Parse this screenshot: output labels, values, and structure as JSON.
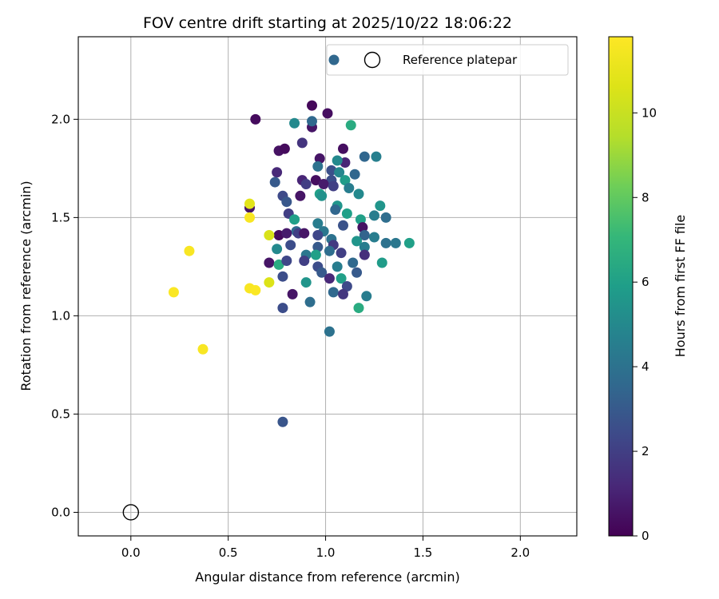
{
  "chart_data": {
    "type": "scatter",
    "title": "FOV centre drift starting at 2025/10/22 18:06:22",
    "xlabel": "Angular distance from reference (arcmin)",
    "ylabel": "Rotation from reference (arcmin)",
    "xlim": [
      -0.27,
      2.29
    ],
    "ylim": [
      -0.12,
      2.42
    ],
    "xticks": [
      "0.0",
      "0.5",
      "1.0",
      "1.5",
      "2.0"
    ],
    "xtick_values": [
      0.0,
      0.5,
      1.0,
      1.5,
      2.0
    ],
    "yticks": [
      "0.0",
      "0.5",
      "1.0",
      "1.5",
      "2.0"
    ],
    "ytick_values": [
      0.0,
      0.5,
      1.0,
      1.5,
      2.0
    ],
    "grid": true,
    "legend_position": "top-right",
    "legend_entries": [
      "",
      "Reference platepar"
    ],
    "colorbar": {
      "label": "Hours from first FF file",
      "min": 0,
      "max": 11.8,
      "ticks": [
        "0",
        "2",
        "4",
        "6",
        "8",
        "10"
      ],
      "tick_values": [
        0,
        2,
        4,
        6,
        8,
        10
      ],
      "colormap": "viridis"
    },
    "reference_point": {
      "name": "Reference platepar",
      "x": 0.0,
      "y": 0.0
    },
    "points": [
      {
        "x": 0.93,
        "y": 2.07,
        "c": 0.2
      },
      {
        "x": 1.01,
        "y": 2.03,
        "c": 0.4
      },
      {
        "x": 0.64,
        "y": 2.0,
        "c": 0.3
      },
      {
        "x": 0.84,
        "y": 1.98,
        "c": 5.0
      },
      {
        "x": 0.93,
        "y": 1.96,
        "c": 0.6
      },
      {
        "x": 0.93,
        "y": 1.99,
        "c": 3.6
      },
      {
        "x": 1.13,
        "y": 1.97,
        "c": 6.5
      },
      {
        "x": 0.88,
        "y": 1.88,
        "c": 1.6
      },
      {
        "x": 0.76,
        "y": 1.84,
        "c": 0.5
      },
      {
        "x": 0.79,
        "y": 1.85,
        "c": 0.3
      },
      {
        "x": 1.09,
        "y": 1.85,
        "c": 0.4
      },
      {
        "x": 0.97,
        "y": 1.8,
        "c": 0.6
      },
      {
        "x": 1.2,
        "y": 1.81,
        "c": 3.5
      },
      {
        "x": 1.26,
        "y": 1.81,
        "c": 4.6
      },
      {
        "x": 1.1,
        "y": 1.78,
        "c": 1.1
      },
      {
        "x": 1.06,
        "y": 1.79,
        "c": 5.0
      },
      {
        "x": 0.96,
        "y": 1.76,
        "c": 4.0
      },
      {
        "x": 0.75,
        "y": 1.73,
        "c": 1.2
      },
      {
        "x": 1.03,
        "y": 1.74,
        "c": 2.6
      },
      {
        "x": 1.07,
        "y": 1.73,
        "c": 4.9
      },
      {
        "x": 1.15,
        "y": 1.72,
        "c": 3.5
      },
      {
        "x": 0.88,
        "y": 1.69,
        "c": 1.1
      },
      {
        "x": 0.95,
        "y": 1.69,
        "c": 0.4
      },
      {
        "x": 1.03,
        "y": 1.69,
        "c": 2.5
      },
      {
        "x": 1.1,
        "y": 1.69,
        "c": 5.8
      },
      {
        "x": 0.74,
        "y": 1.68,
        "c": 3.0
      },
      {
        "x": 0.9,
        "y": 1.67,
        "c": 2.0
      },
      {
        "x": 0.99,
        "y": 1.67,
        "c": 0.8
      },
      {
        "x": 1.04,
        "y": 1.66,
        "c": 2.0
      },
      {
        "x": 1.12,
        "y": 1.65,
        "c": 4.5
      },
      {
        "x": 0.97,
        "y": 1.62,
        "c": 6.0
      },
      {
        "x": 1.17,
        "y": 1.62,
        "c": 5.0
      },
      {
        "x": 0.78,
        "y": 1.61,
        "c": 2.4
      },
      {
        "x": 0.87,
        "y": 1.61,
        "c": 0.6
      },
      {
        "x": 0.98,
        "y": 1.61,
        "c": 5.4
      },
      {
        "x": 0.8,
        "y": 1.58,
        "c": 2.9
      },
      {
        "x": 1.28,
        "y": 1.56,
        "c": 5.5
      },
      {
        "x": 0.61,
        "y": 1.55,
        "c": 0.6
      },
      {
        "x": 0.61,
        "y": 1.57,
        "c": 10.8
      },
      {
        "x": 1.06,
        "y": 1.56,
        "c": 5.5
      },
      {
        "x": 1.05,
        "y": 1.54,
        "c": 3.5
      },
      {
        "x": 0.81,
        "y": 1.52,
        "c": 2.0
      },
      {
        "x": 1.11,
        "y": 1.52,
        "c": 6.0
      },
      {
        "x": 1.25,
        "y": 1.51,
        "c": 4.5
      },
      {
        "x": 0.61,
        "y": 1.5,
        "c": 11.6
      },
      {
        "x": 0.84,
        "y": 1.49,
        "c": 6.0
      },
      {
        "x": 1.18,
        "y": 1.49,
        "c": 6.0
      },
      {
        "x": 1.31,
        "y": 1.5,
        "c": 3.8
      },
      {
        "x": 0.96,
        "y": 1.47,
        "c": 4.5
      },
      {
        "x": 1.09,
        "y": 1.46,
        "c": 2.7
      },
      {
        "x": 1.19,
        "y": 1.45,
        "c": 0.5
      },
      {
        "x": 0.85,
        "y": 1.43,
        "c": 3.6
      },
      {
        "x": 0.99,
        "y": 1.43,
        "c": 4.2
      },
      {
        "x": 0.76,
        "y": 1.41,
        "c": 0.3
      },
      {
        "x": 0.8,
        "y": 1.42,
        "c": 0.8
      },
      {
        "x": 0.86,
        "y": 1.42,
        "c": 2.0
      },
      {
        "x": 0.89,
        "y": 1.42,
        "c": 0.6
      },
      {
        "x": 0.96,
        "y": 1.41,
        "c": 2.3
      },
      {
        "x": 1.2,
        "y": 1.41,
        "c": 3.4
      },
      {
        "x": 0.71,
        "y": 1.41,
        "c": 10.5
      },
      {
        "x": 1.03,
        "y": 1.39,
        "c": 4.0
      },
      {
        "x": 1.25,
        "y": 1.4,
        "c": 4.5
      },
      {
        "x": 1.16,
        "y": 1.38,
        "c": 5.5
      },
      {
        "x": 0.96,
        "y": 1.35,
        "c": 3.0
      },
      {
        "x": 0.82,
        "y": 1.36,
        "c": 2.5
      },
      {
        "x": 1.04,
        "y": 1.36,
        "c": 1.8
      },
      {
        "x": 1.2,
        "y": 1.35,
        "c": 4.5
      },
      {
        "x": 1.31,
        "y": 1.37,
        "c": 4.0
      },
      {
        "x": 1.36,
        "y": 1.37,
        "c": 4.2
      },
      {
        "x": 1.43,
        "y": 1.37,
        "c": 6.0
      },
      {
        "x": 0.75,
        "y": 1.34,
        "c": 5.0
      },
      {
        "x": 0.9,
        "y": 1.31,
        "c": 4.2
      },
      {
        "x": 0.95,
        "y": 1.31,
        "c": 6.0
      },
      {
        "x": 1.02,
        "y": 1.33,
        "c": 3.8
      },
      {
        "x": 1.08,
        "y": 1.32,
        "c": 2.0
      },
      {
        "x": 1.2,
        "y": 1.31,
        "c": 1.4
      },
      {
        "x": 0.71,
        "y": 1.27,
        "c": 0.6
      },
      {
        "x": 0.76,
        "y": 1.26,
        "c": 6.5
      },
      {
        "x": 0.8,
        "y": 1.28,
        "c": 2.3
      },
      {
        "x": 0.89,
        "y": 1.28,
        "c": 2.0
      },
      {
        "x": 1.14,
        "y": 1.27,
        "c": 3.6
      },
      {
        "x": 1.29,
        "y": 1.27,
        "c": 5.8
      },
      {
        "x": 0.96,
        "y": 1.25,
        "c": 2.5
      },
      {
        "x": 0.98,
        "y": 1.22,
        "c": 3.0
      },
      {
        "x": 1.06,
        "y": 1.25,
        "c": 4.5
      },
      {
        "x": 1.16,
        "y": 1.22,
        "c": 3.0
      },
      {
        "x": 0.78,
        "y": 1.2,
        "c": 2.5
      },
      {
        "x": 1.02,
        "y": 1.19,
        "c": 1.2
      },
      {
        "x": 1.08,
        "y": 1.19,
        "c": 6.0
      },
      {
        "x": 0.9,
        "y": 1.17,
        "c": 5.5
      },
      {
        "x": 0.71,
        "y": 1.17,
        "c": 10.6
      },
      {
        "x": 1.11,
        "y": 1.15,
        "c": 2.4
      },
      {
        "x": 0.61,
        "y": 1.14,
        "c": 11.6
      },
      {
        "x": 0.64,
        "y": 1.13,
        "c": 11.7
      },
      {
        "x": 1.04,
        "y": 1.12,
        "c": 3.6
      },
      {
        "x": 0.83,
        "y": 1.11,
        "c": 0.6
      },
      {
        "x": 1.09,
        "y": 1.11,
        "c": 1.7
      },
      {
        "x": 1.21,
        "y": 1.1,
        "c": 4.5
      },
      {
        "x": 0.92,
        "y": 1.07,
        "c": 3.8
      },
      {
        "x": 0.78,
        "y": 1.04,
        "c": 2.5
      },
      {
        "x": 1.17,
        "y": 1.04,
        "c": 6.5
      },
      {
        "x": 1.02,
        "y": 0.92,
        "c": 4.0
      },
      {
        "x": 0.78,
        "y": 0.46,
        "c": 2.8
      },
      {
        "x": 0.22,
        "y": 1.12,
        "c": 11.7
      },
      {
        "x": 0.3,
        "y": 1.33,
        "c": 11.6
      },
      {
        "x": 0.37,
        "y": 0.83,
        "c": 11.6
      }
    ]
  }
}
